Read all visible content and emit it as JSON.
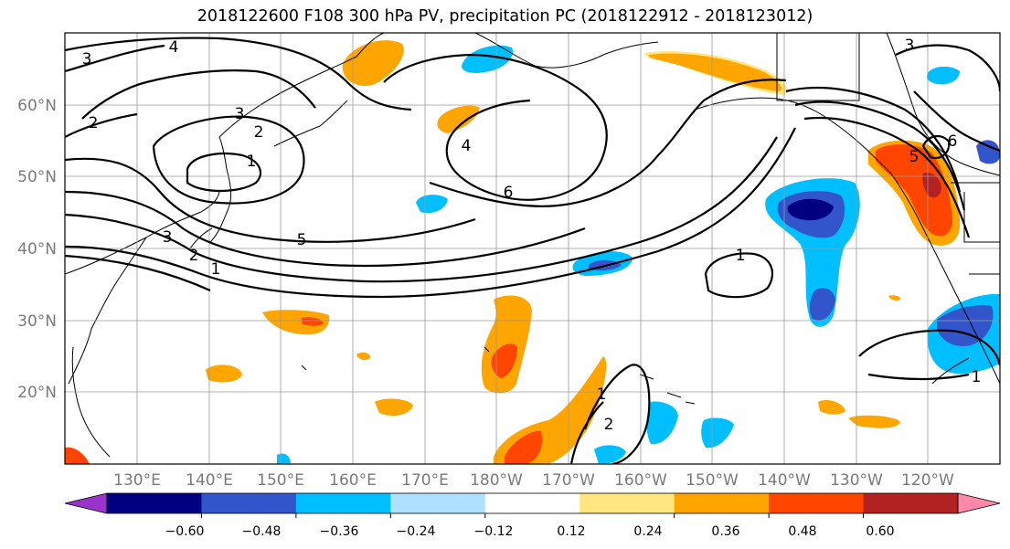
{
  "title": "2018122600 F108 300 hPa PV, precipitation PC (2018122912 - 2018123012)",
  "lat_labels": [
    "60°N",
    "50°N",
    "40°N",
    "30°N",
    "20°N"
  ],
  "lon_labels": [
    "130°E",
    "140°E",
    "150°E",
    "160°E",
    "170°E",
    "180°W",
    "170°W",
    "160°W",
    "150°W",
    "140°W",
    "130°W",
    "120°W"
  ],
  "pv_contour_labels": [
    "4",
    "3",
    "2",
    "3",
    "2",
    "1",
    "4",
    "6",
    "5",
    "3",
    "2",
    "1",
    "1",
    "3",
    "5",
    "6",
    "1",
    "2",
    "1"
  ],
  "colorbar": {
    "tick_labels": [
      "−0.60",
      "−0.48",
      "−0.36",
      "−0.24",
      "−0.12",
      "0.12",
      "0.24",
      "0.36",
      "0.48",
      "0.60"
    ],
    "colors": [
      "#9933cc",
      "#000080",
      "#3355cc",
      "#00bfff",
      "#b0e0ff",
      "#ffffff",
      "#ffe680",
      "#ffa500",
      "#ff4500",
      "#b22222",
      "#ff88aa"
    ]
  }
}
